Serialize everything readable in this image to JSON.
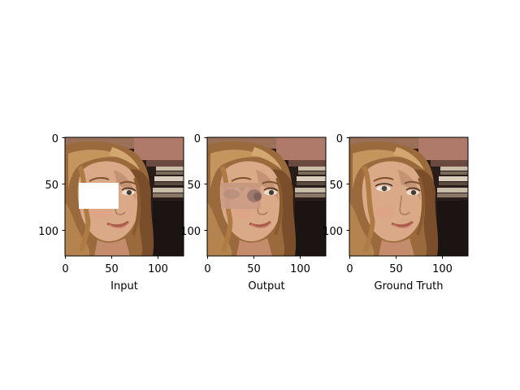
{
  "figure": {
    "background": "#ffffff",
    "axis_color": "#000000",
    "panels": [
      {
        "id": "input",
        "xlabel": "Input",
        "xticks": [
          0,
          50,
          100
        ],
        "yticks": [
          0,
          50,
          100
        ],
        "xlim": [
          0,
          128
        ],
        "ylim": [
          128,
          0
        ],
        "image": "face-portrait-with-white-mask",
        "mask": {
          "x": [
            15,
            58
          ],
          "y": [
            49,
            77
          ],
          "color": "#ffffff"
        }
      },
      {
        "id": "output",
        "xlabel": "Output",
        "xticks": [
          0,
          50,
          100
        ],
        "yticks": [
          0,
          50,
          100
        ],
        "xlim": [
          0,
          128
        ],
        "ylim": [
          128,
          0
        ],
        "image": "face-portrait-inpainted-blurry",
        "inpainted_region": {
          "x": [
            15,
            58
          ],
          "y": [
            49,
            77
          ]
        }
      },
      {
        "id": "ground-truth",
        "xlabel": "Ground Truth",
        "xticks": [
          0,
          50,
          100
        ],
        "yticks": [
          0,
          50,
          100
        ],
        "xlim": [
          0,
          128
        ],
        "ylim": [
          128,
          0
        ],
        "image": "face-portrait-original"
      }
    ]
  }
}
